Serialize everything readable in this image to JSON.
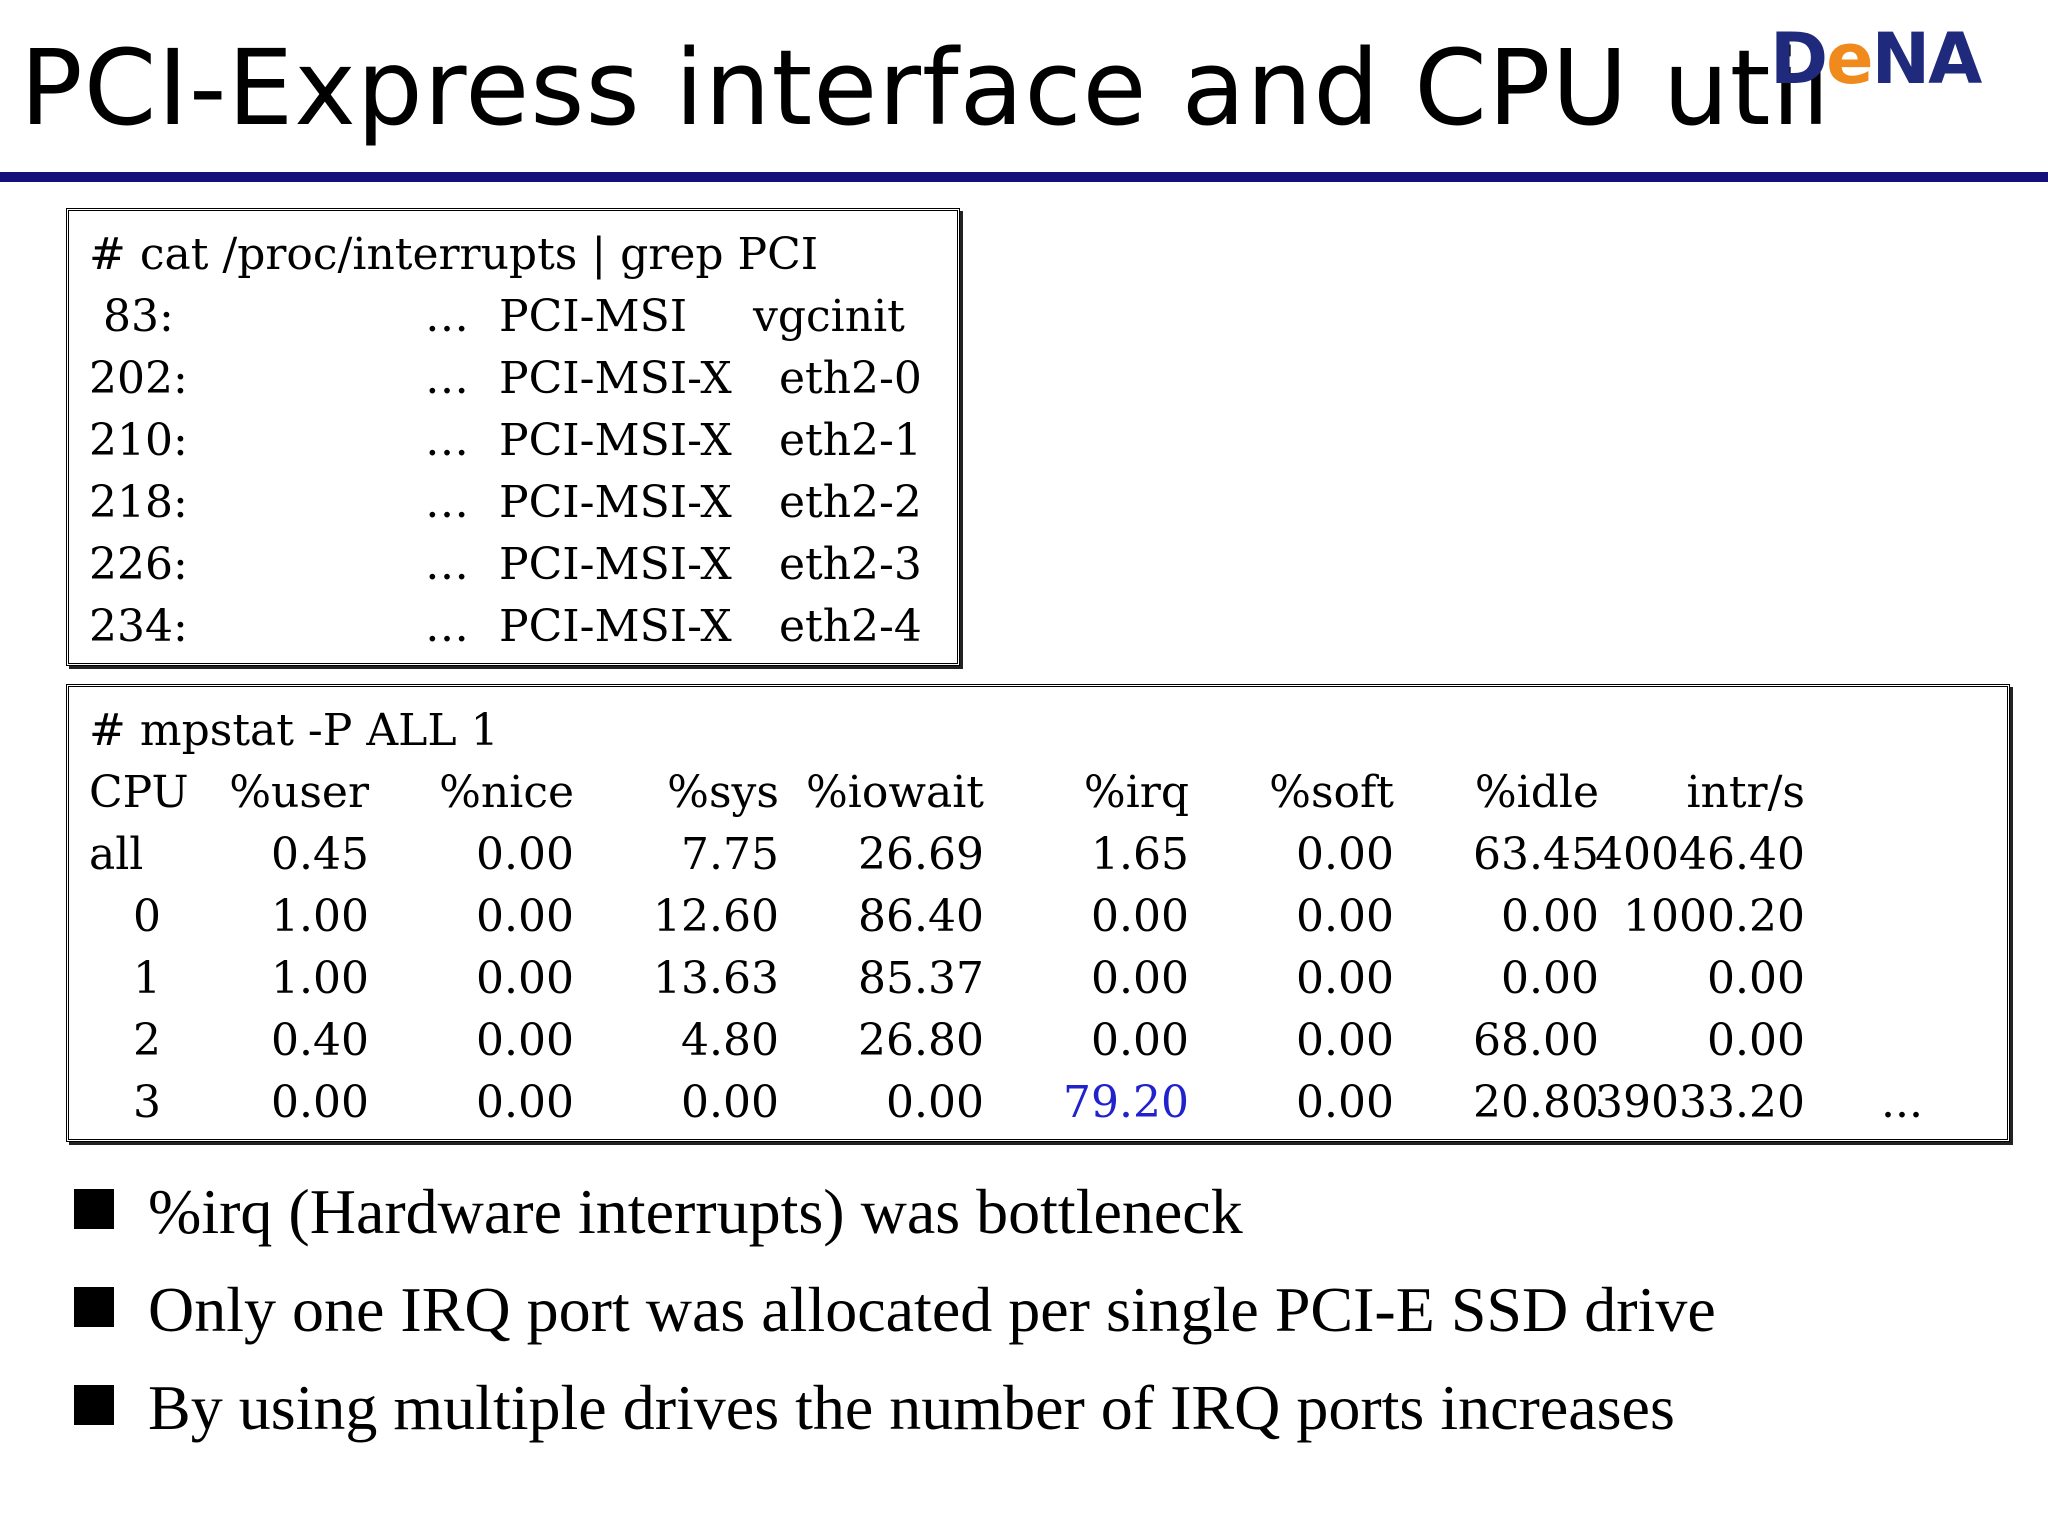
{
  "slide": {
    "title": "PCI-Express interface and CPU util",
    "logo": {
      "part1": "D",
      "part2": "e",
      "part3": "NA"
    }
  },
  "interrupts_box": {
    "command": "# cat /proc/interrupts | grep PCI",
    "rows": [
      {
        "irq": " 83:",
        "dots": "…",
        "type": "PCI-MSI",
        "name": "vgcinit"
      },
      {
        "irq": "202:",
        "dots": "…",
        "type": "PCI-MSI-X",
        "name": "eth2-0"
      },
      {
        "irq": "210:",
        "dots": "…",
        "type": "PCI-MSI-X",
        "name": "eth2-1"
      },
      {
        "irq": "218:",
        "dots": "…",
        "type": "PCI-MSI-X",
        "name": "eth2-2"
      },
      {
        "irq": "226:",
        "dots": "…",
        "type": "PCI-MSI-X",
        "name": "eth2-3"
      },
      {
        "irq": "234:",
        "dots": "…",
        "type": "PCI-MSI-X",
        "name": "eth2-4"
      }
    ]
  },
  "mpstat_box": {
    "command": "# mpstat -P ALL 1",
    "headers": [
      "CPU",
      "%user",
      "%nice",
      "%sys",
      "%iowait",
      "%irq",
      "%soft",
      "%idle",
      "intr/s"
    ],
    "rows": [
      [
        "all",
        "0.45",
        "0.00",
        "7.75",
        "26.69",
        "1.65",
        "0.00",
        "63.45",
        "40046.40"
      ],
      [
        "0",
        "1.00",
        "0.00",
        "12.60",
        "86.40",
        "0.00",
        "0.00",
        "0.00",
        "1000.20"
      ],
      [
        "1",
        "1.00",
        "0.00",
        "13.63",
        "85.37",
        "0.00",
        "0.00",
        "0.00",
        "0.00"
      ],
      [
        "2",
        "0.40",
        "0.00",
        "4.80",
        "26.80",
        "0.00",
        "0.00",
        "68.00",
        "0.00"
      ],
      [
        "3",
        "0.00",
        "0.00",
        "0.00",
        "0.00",
        "79.20",
        "0.00",
        "20.80",
        "39033.20"
      ]
    ],
    "trailing": "...",
    "highlight_color": "#2222cc"
  },
  "bullets": [
    "%irq (Hardware interrupts) was bottleneck",
    "Only one IRQ port was allocated per single PCI-E SSD drive",
    "By using multiple drives the number of IRQ ports increases"
  ]
}
